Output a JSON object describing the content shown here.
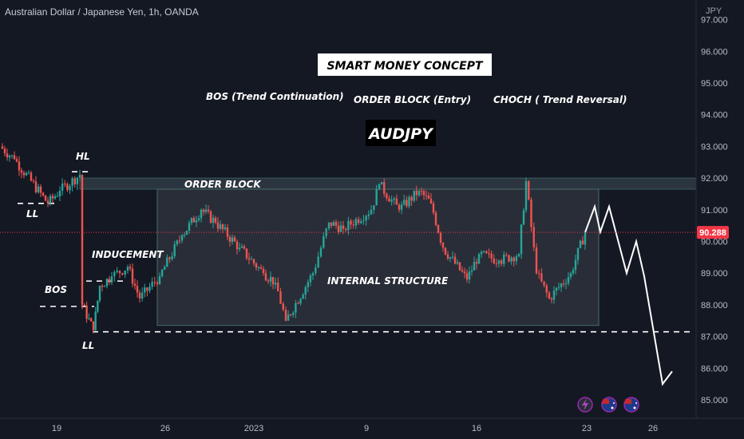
{
  "header": {
    "symbol_line": "Australian Dollar / Japanese Yen, 1h, OANDA",
    "axis_unit": "JPY"
  },
  "colors": {
    "background": "#141823",
    "up": "#26a69a",
    "down": "#ef5350",
    "price_tag": "#f23645",
    "zone_fill": "#2f3b45",
    "box_fill": "#3a3f4b"
  },
  "chart_data": {
    "type": "candlestick",
    "symbol": "AUDJPY",
    "interval": "1h",
    "y_ticks": [
      85.0,
      86.0,
      87.0,
      88.0,
      89.0,
      90.0,
      91.0,
      92.0,
      93.0,
      94.0,
      95.0,
      96.0,
      97.0
    ],
    "y_tick_labels": [
      "85.000",
      "86.000",
      "87.000",
      "88.000",
      "89.000",
      "90.000",
      "91.000",
      "92.000",
      "93.000",
      "94.000",
      "95.000",
      "96.000",
      "97.000"
    ],
    "ylim": [
      84.4,
      97.5
    ],
    "x_ticks": [
      "19",
      "22",
      "26",
      "2023",
      "5",
      "9",
      "12",
      "16",
      "19",
      "23",
      "26"
    ],
    "x_tick_labels": [
      "19",
      "",
      "26",
      "2023",
      "",
      "9",
      "",
      "16",
      "",
      "23",
      "26"
    ],
    "last_price": 90.288,
    "last_price_label": "90.288",
    "price_path": [
      [
        "19",
        93.0
      ],
      [
        "19",
        92.6
      ],
      [
        "19",
        91.2
      ],
      [
        "19",
        91.6
      ],
      [
        "22",
        92.1
      ],
      [
        "22",
        88.0
      ],
      [
        "22",
        87.2
      ],
      [
        "22",
        88.6
      ],
      [
        "22",
        88.9
      ],
      [
        "22",
        89.2
      ],
      [
        "22",
        88.2
      ],
      [
        "26",
        88.9
      ],
      [
        "26",
        90.2
      ],
      [
        "26",
        91.0
      ],
      [
        "26",
        90.6
      ],
      [
        "26",
        89.8
      ],
      [
        "2023",
        89.0
      ],
      [
        "2023",
        88.7
      ],
      [
        "2023",
        87.5
      ],
      [
        "5",
        89.0
      ],
      [
        "5",
        90.6
      ],
      [
        "5",
        90.4
      ],
      [
        "9",
        91.0
      ],
      [
        "9",
        91.8
      ],
      [
        "9",
        91.0
      ],
      [
        "12",
        91.6
      ],
      [
        "12",
        91.2
      ],
      [
        "12",
        89.8
      ],
      [
        "16",
        88.8
      ],
      [
        "16",
        89.6
      ],
      [
        "16",
        89.4
      ],
      [
        "19",
        89.6
      ],
      [
        "19",
        91.9
      ],
      [
        "19",
        89.0
      ],
      [
        "19",
        88.2
      ],
      [
        "23",
        89.0
      ],
      [
        "23",
        90.288
      ]
    ],
    "zones": {
      "order_block": {
        "from": "22",
        "to": "26",
        "low": 91.65,
        "high": 92.0
      },
      "internal_structure": {
        "from": "26",
        "to": "23",
        "low": 87.35,
        "high": 91.65
      }
    },
    "levels": [
      {
        "name": "LL",
        "value": 87.15
      },
      {
        "name": "BOS",
        "value": 87.95
      },
      {
        "name": "inducement",
        "value": 88.75
      },
      {
        "name": "HL",
        "value": 92.2
      },
      {
        "name": "LL-left",
        "value": 91.2
      }
    ],
    "projection": [
      [
        "23",
        90.288
      ],
      [
        "23",
        91.1
      ],
      [
        "23",
        90.3
      ],
      [
        "23",
        91.1
      ],
      [
        "23",
        89.0
      ],
      [
        "26",
        90.0
      ],
      [
        "26",
        88.9
      ],
      [
        "26",
        85.5
      ],
      [
        "26",
        85.9
      ]
    ]
  },
  "annotations": {
    "title": "SMART MONEY CONCEPT",
    "symbol_box": "AUDJPY",
    "bos_trend": "BOS (Trend Continuation)",
    "order_block_entry": "ORDER BLOCK (Entry)",
    "choch": "CHOCH ( Trend Reversal)",
    "order_block": "ORDER BLOCK",
    "internal_structure": "INTERNAL STRUCTURE",
    "inducement": "INDUCEMENT",
    "hl": "HL",
    "ll_left": "LL",
    "bos": "BOS",
    "ll_bottom": "LL"
  },
  "icons": [
    "lightning-icon",
    "australia-flag-icon",
    "australia-flag-icon"
  ]
}
